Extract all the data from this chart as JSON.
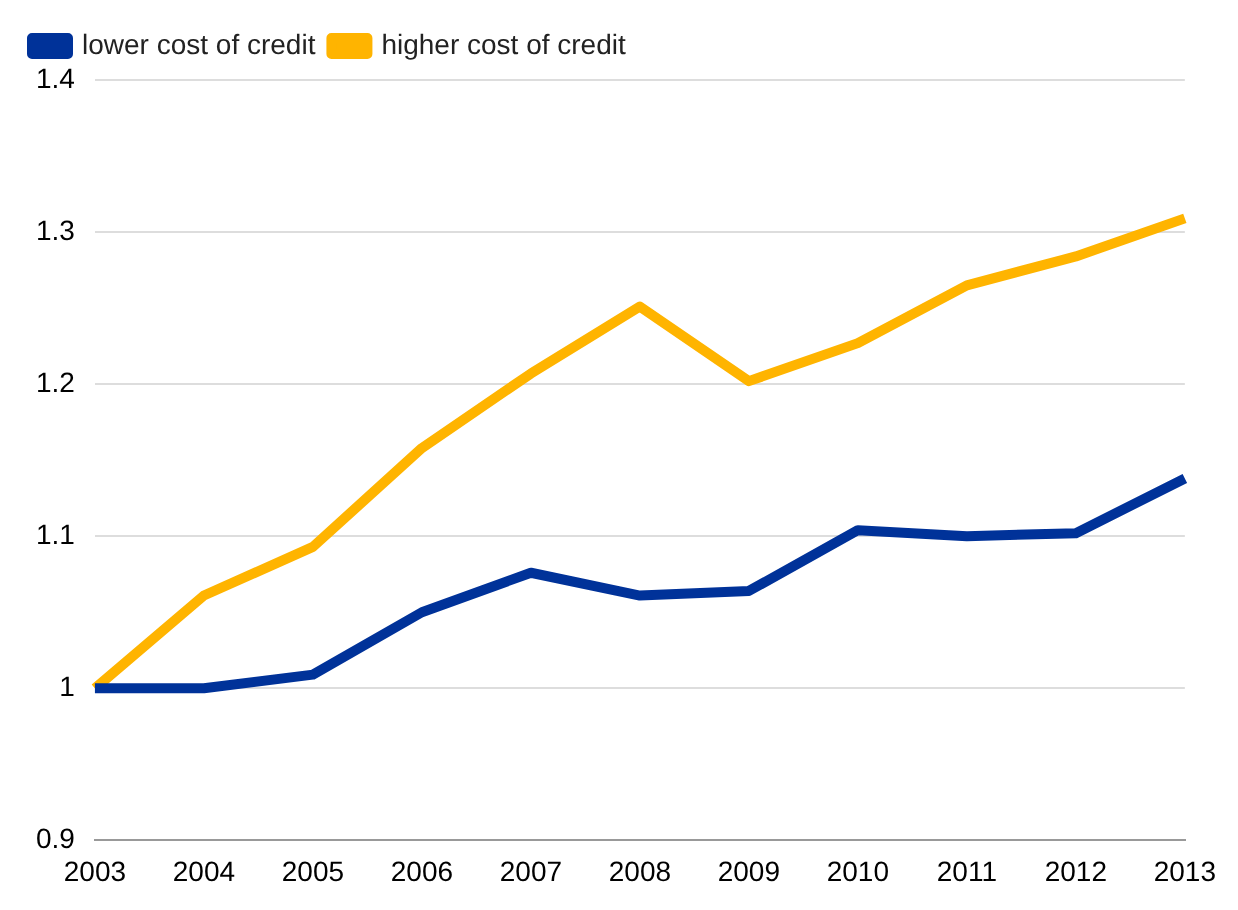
{
  "chart_data": {
    "type": "line",
    "categories": [
      "2003",
      "2004",
      "2005",
      "2006",
      "2007",
      "2008",
      "2009",
      "2010",
      "2011",
      "2012",
      "2013"
    ],
    "series": [
      {
        "name": "lower cost of credit",
        "color": "#003299",
        "values": [
          1.0,
          1.0,
          1.009,
          1.05,
          1.076,
          1.061,
          1.064,
          1.104,
          1.1,
          1.102,
          1.138
        ]
      },
      {
        "name": "higher cost of credit",
        "color": "#ffb400",
        "values": [
          1.0,
          1.061,
          1.093,
          1.158,
          1.207,
          1.251,
          1.202,
          1.227,
          1.265,
          1.284,
          1.309
        ]
      }
    ],
    "ylim": [
      0.9,
      1.4
    ],
    "yticks": [
      0.9,
      1,
      1.1,
      1.2,
      1.3,
      1.4
    ],
    "grid": "y",
    "legend": "top left",
    "marker": "none",
    "line_style": "solid"
  }
}
